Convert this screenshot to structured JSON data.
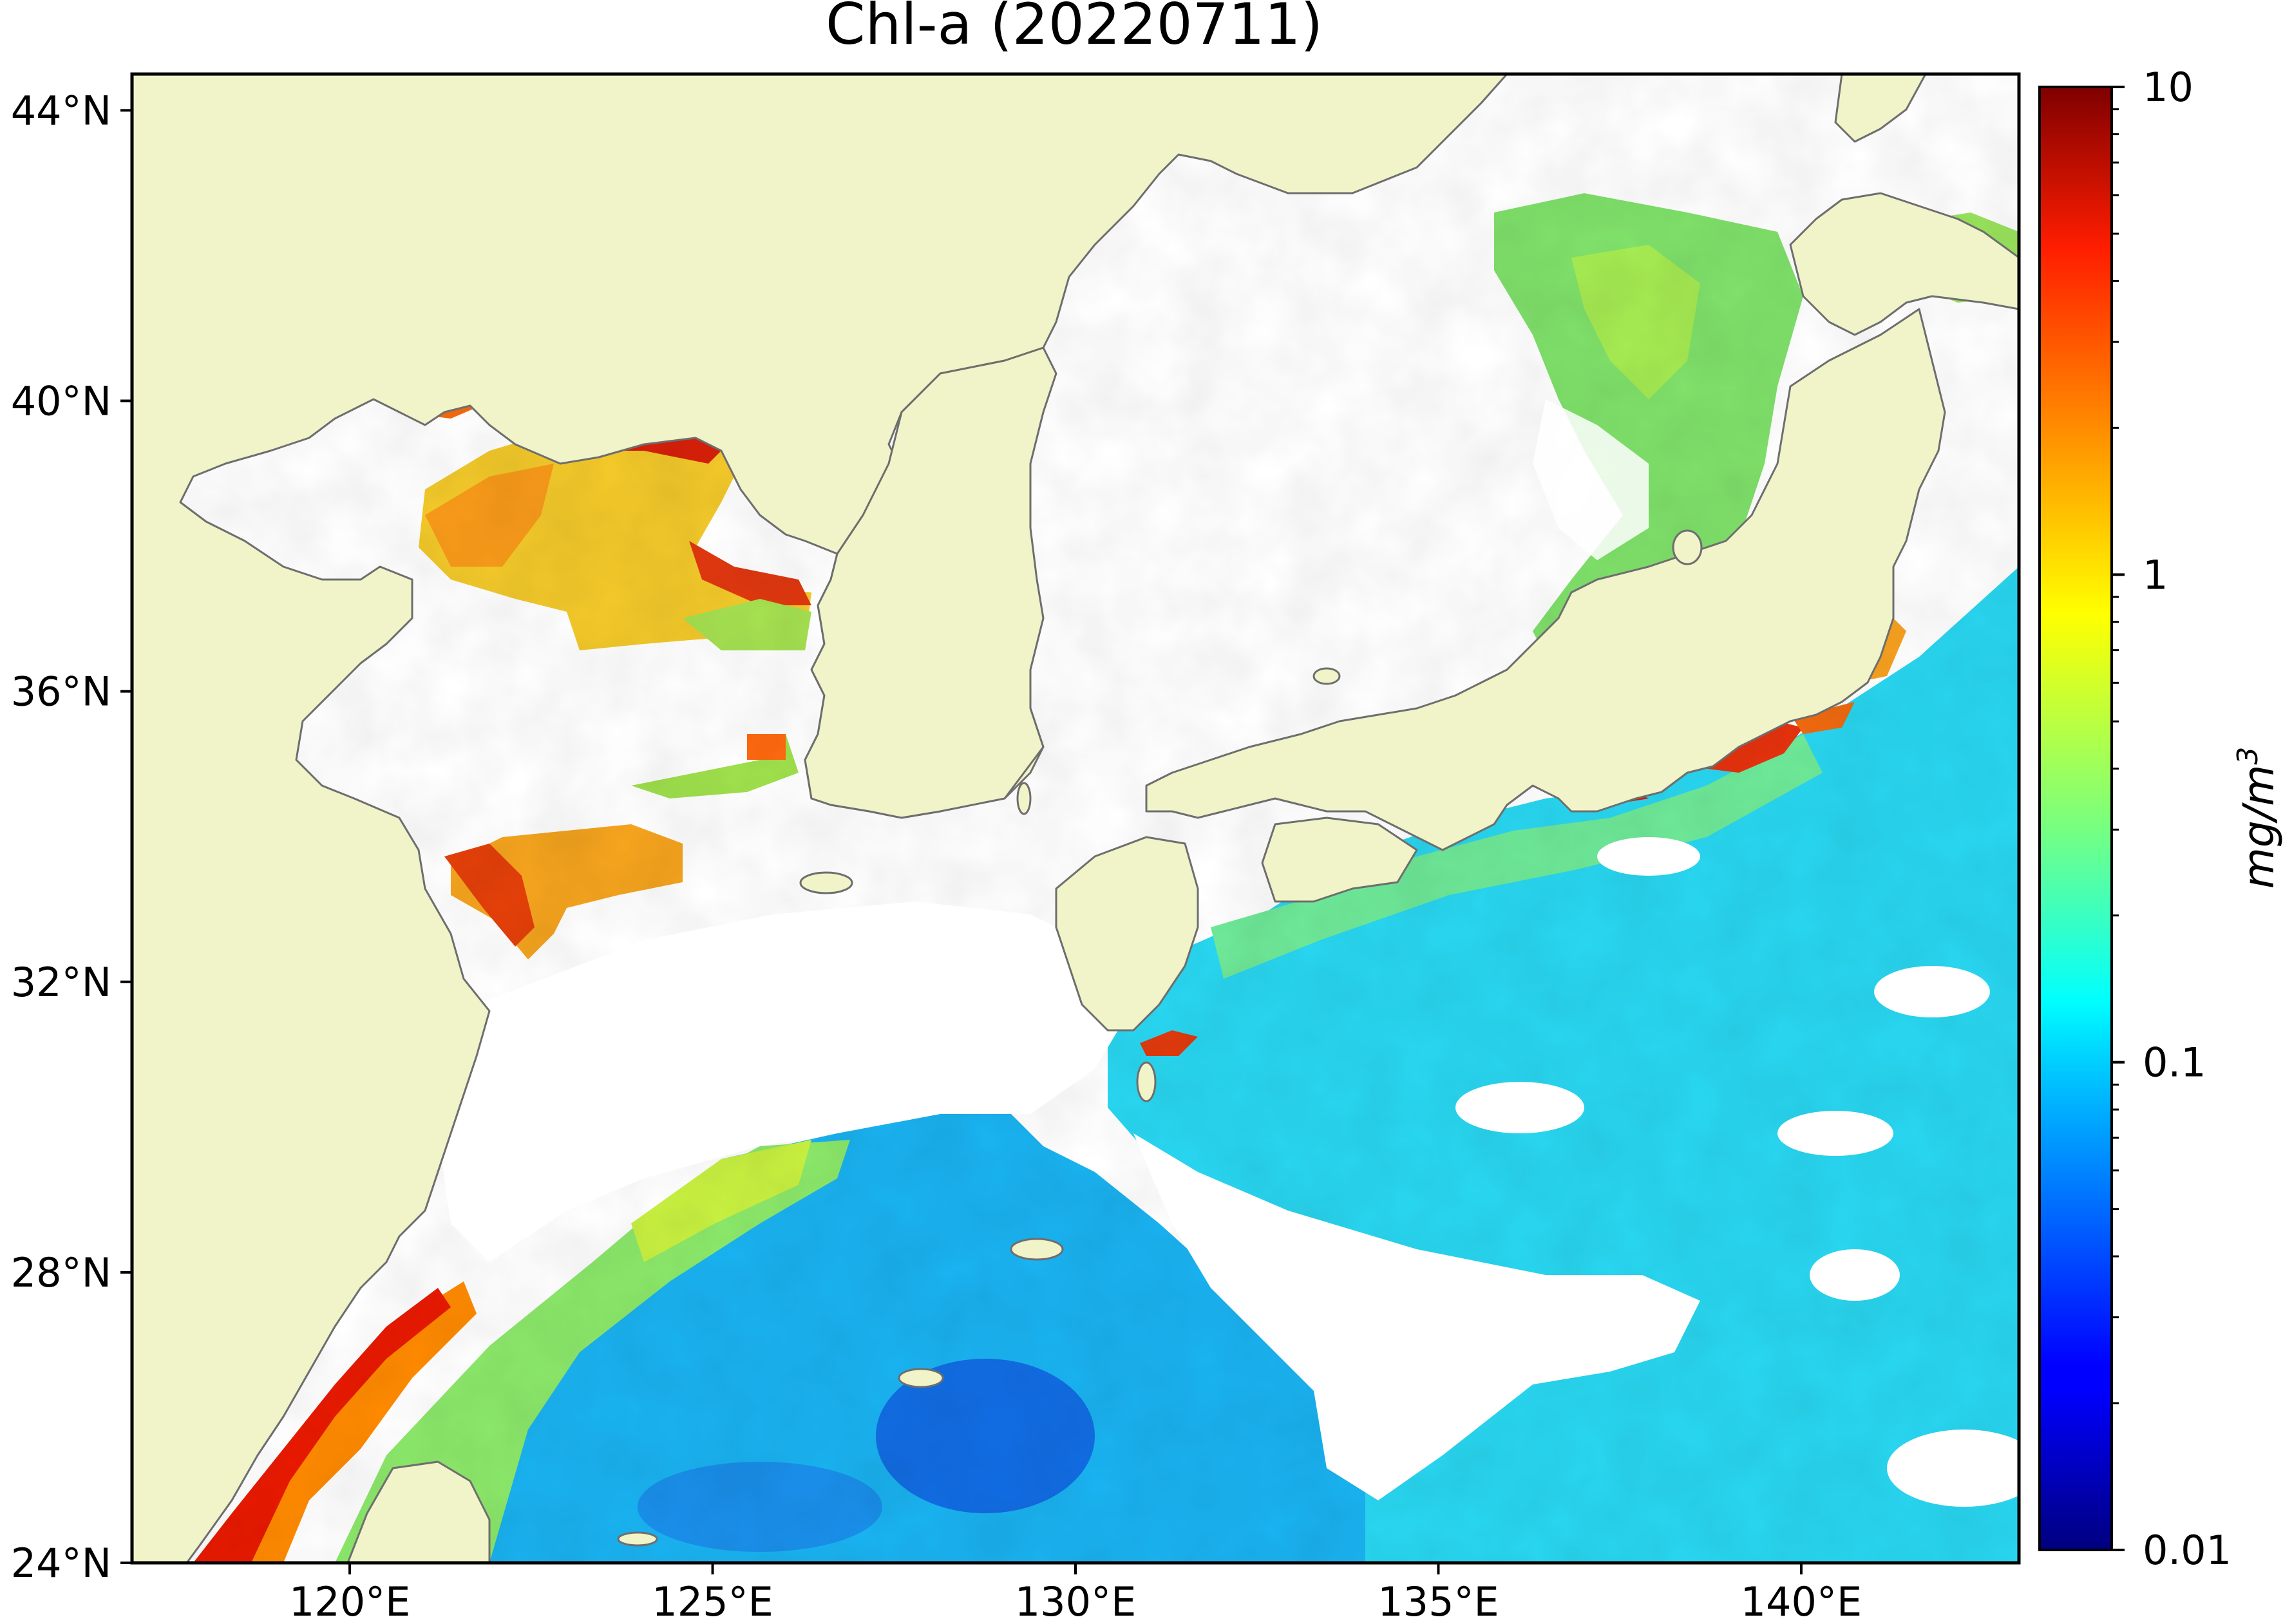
{
  "chart_data": {
    "type": "map",
    "title": "Chl-a (20220711)",
    "xlim": [
      117,
      143
    ],
    "ylim": [
      24,
      44.5
    ],
    "x_ticks": [
      {
        "value": 120,
        "label": "120°E"
      },
      {
        "value": 125,
        "label": "125°E"
      },
      {
        "value": 130,
        "label": "130°E"
      },
      {
        "value": 135,
        "label": "135°E"
      },
      {
        "value": 140,
        "label": "140°E"
      }
    ],
    "y_ticks": [
      {
        "value": 24,
        "label": "24°N"
      },
      {
        "value": 28,
        "label": "28°N"
      },
      {
        "value": 32,
        "label": "32°N"
      },
      {
        "value": 36,
        "label": "36°N"
      },
      {
        "value": 40,
        "label": "40°N"
      },
      {
        "value": 44,
        "label": "44°N"
      }
    ],
    "colorbar": {
      "label": "mg/m³",
      "label_base": "mg/m",
      "label_sup": "3",
      "scale": "log",
      "range": [
        0.01,
        10
      ],
      "ticks": [
        {
          "value": 10,
          "label": "10"
        },
        {
          "value": 1,
          "label": "1"
        },
        {
          "value": 0.1,
          "label": "0.1"
        },
        {
          "value": 0.01,
          "label": "0.01"
        }
      ],
      "colormap": "jet"
    },
    "colors": {
      "land": "#f0f4c8",
      "coastline": "#6e6e6e",
      "no_data": "#ffffff"
    }
  }
}
